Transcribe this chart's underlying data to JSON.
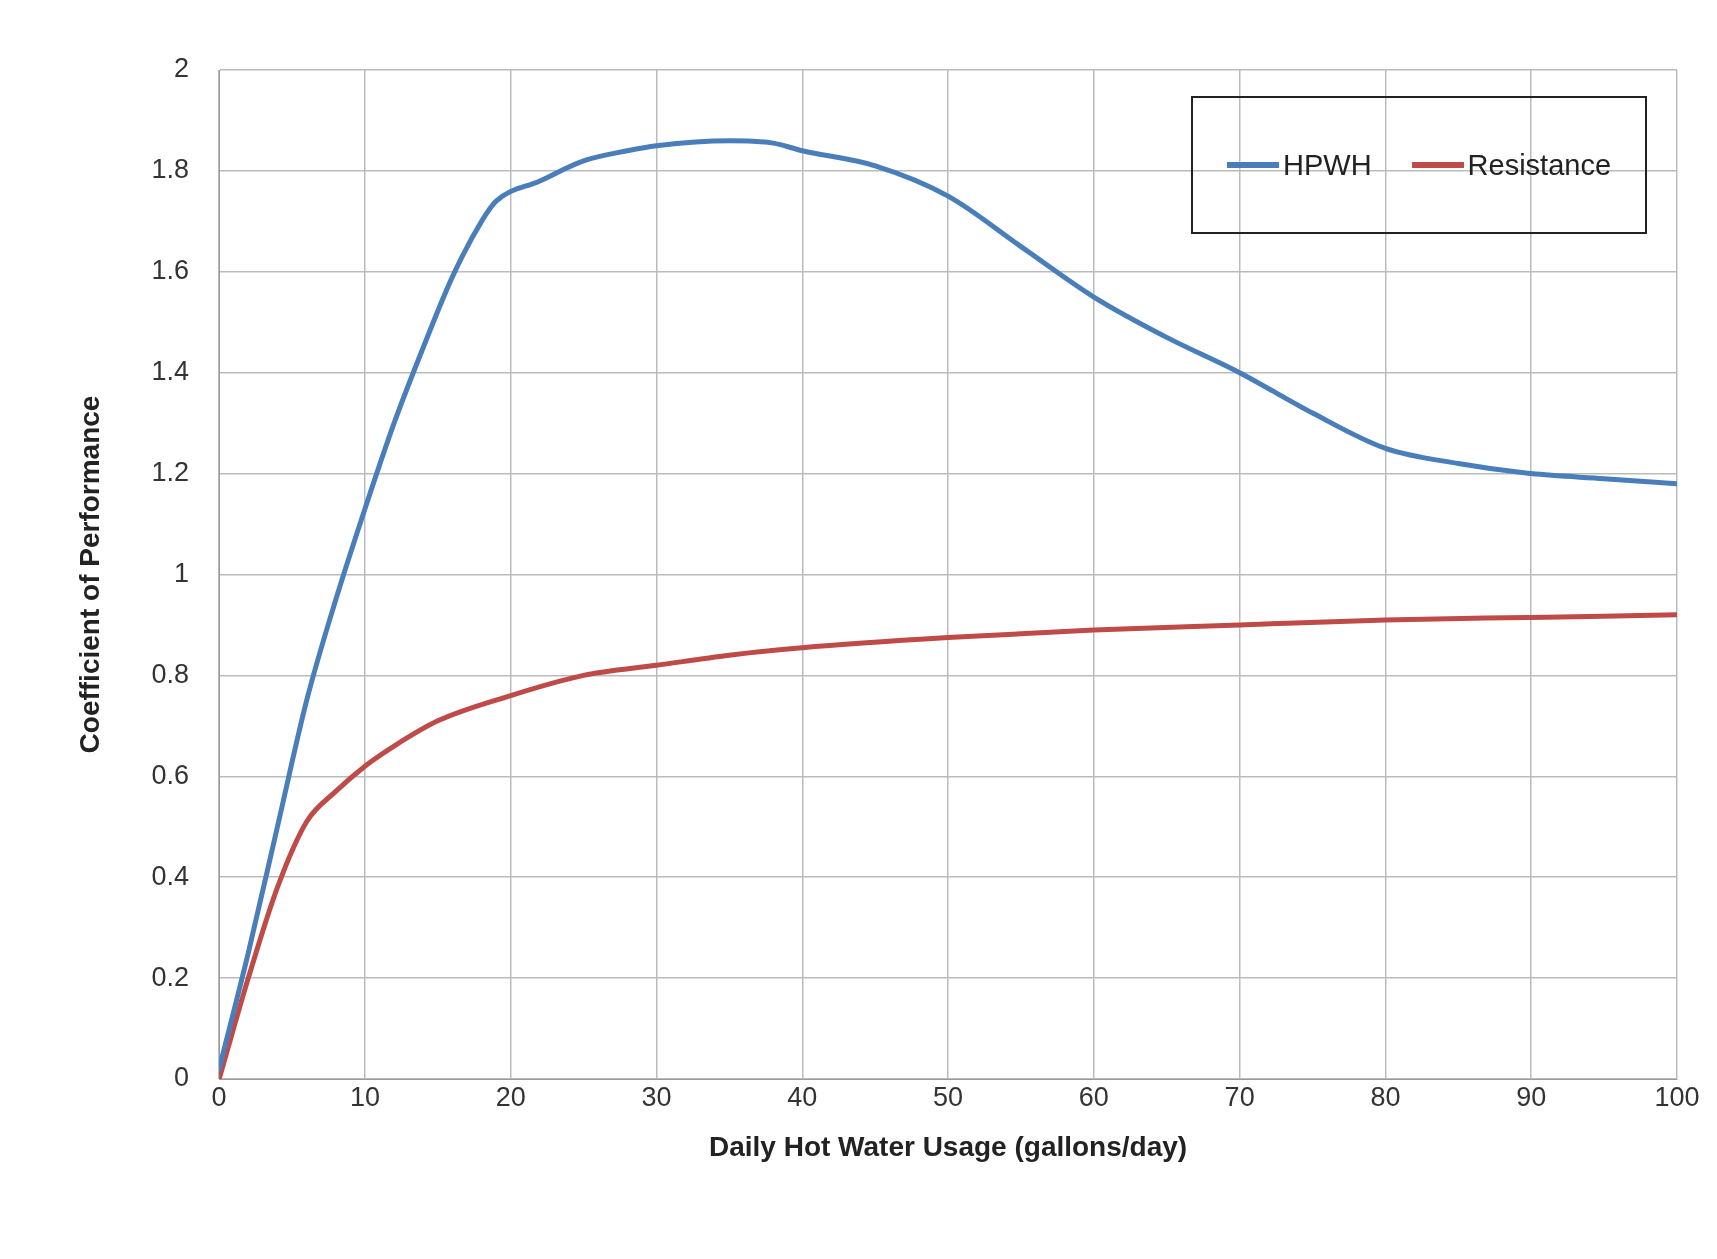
{
  "chart_data": {
    "type": "line",
    "xlabel": "Daily Hot Water Usage (gallons/day)",
    "ylabel": "Coefficient of Performance",
    "xlim": [
      0,
      100
    ],
    "xticks": [
      0,
      10,
      20,
      30,
      40,
      50,
      60,
      70,
      80,
      90,
      100
    ],
    "ylim": [
      0,
      2
    ],
    "yticks": [
      0,
      0.2,
      0.4,
      0.6,
      0.8,
      1,
      1.2,
      1.4,
      1.6,
      1.8,
      2
    ],
    "grid": true,
    "legend": "top right",
    "marker": "none",
    "line_style": "solid",
    "series": [
      {
        "name": "HPWH",
        "color": "#4a7ebb",
        "x": [
          0,
          2,
          4,
          6,
          8,
          10,
          12,
          14,
          16,
          18,
          19,
          22,
          25,
          28,
          30,
          35,
          38,
          40,
          45,
          50,
          55,
          60,
          65,
          70,
          75,
          80,
          85,
          90,
          95,
          100
        ],
        "values": [
          0.02,
          0.25,
          0.5,
          0.75,
          0.95,
          1.13,
          1.3,
          1.45,
          1.59,
          1.7,
          1.74,
          1.78,
          1.82,
          1.84,
          1.85,
          1.86,
          1.855,
          1.84,
          1.81,
          1.75,
          1.65,
          1.55,
          1.47,
          1.4,
          1.32,
          1.25,
          1.22,
          1.2,
          1.19,
          1.18
        ]
      },
      {
        "name": "Resistance",
        "color": "#be4b48",
        "x": [
          0,
          2,
          4,
          6,
          8,
          10,
          12,
          15,
          20,
          25,
          30,
          35,
          40,
          50,
          60,
          70,
          80,
          90,
          100
        ],
        "values": [
          0,
          0.2,
          0.38,
          0.51,
          0.57,
          0.62,
          0.66,
          0.71,
          0.76,
          0.8,
          0.82,
          0.84,
          0.855,
          0.875,
          0.89,
          0.9,
          0.91,
          0.915,
          0.92
        ]
      }
    ]
  }
}
